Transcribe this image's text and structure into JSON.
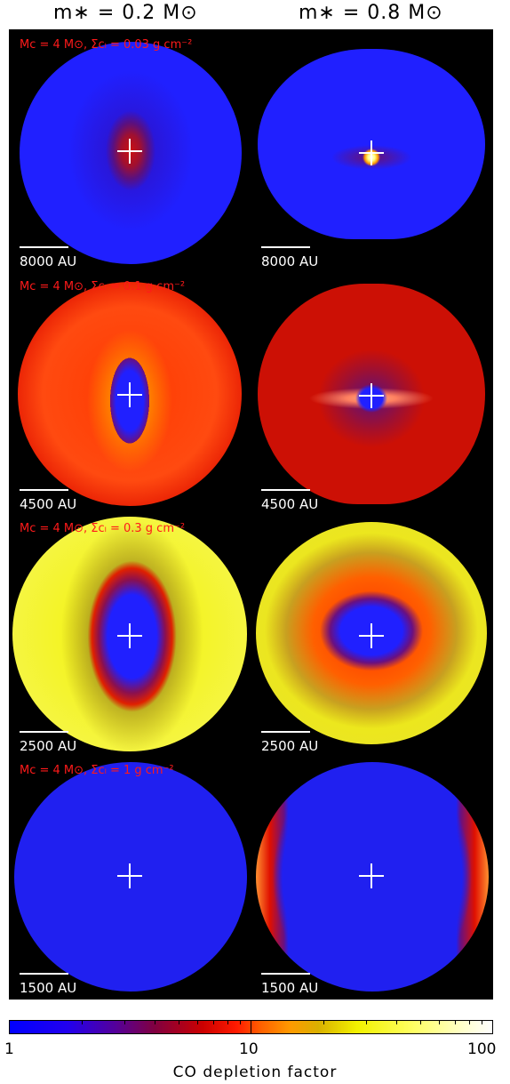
{
  "columns": [
    "m∗ = 0.2 M⊙",
    "m∗ = 0.8 M⊙"
  ],
  "row_labels": [
    "Mᴄ = 4 M⊙, Σᴄₗ = 0.03 g cm⁻²",
    "Mᴄ = 4 M⊙, Σᴄₗ = 0.1 g cm⁻²",
    "Mᴄ = 4 M⊙, Σᴄₗ = 0.3 g cm⁻²",
    "Mᴄ = 4 M⊙, Σᴄₗ = 1 g cm⁻²"
  ],
  "scale_bars": [
    "8000 AU",
    "4500 AU",
    "2500 AU",
    "1500 AU"
  ],
  "colorbar": {
    "title": "CO depletion factor",
    "tick_labels": [
      "1",
      "10",
      "100"
    ],
    "scale": "log",
    "colors": [
      "#0000ff",
      "#800040",
      "#ff1a00",
      "#ff9900",
      "#f2f200",
      "#ffffff"
    ]
  }
}
